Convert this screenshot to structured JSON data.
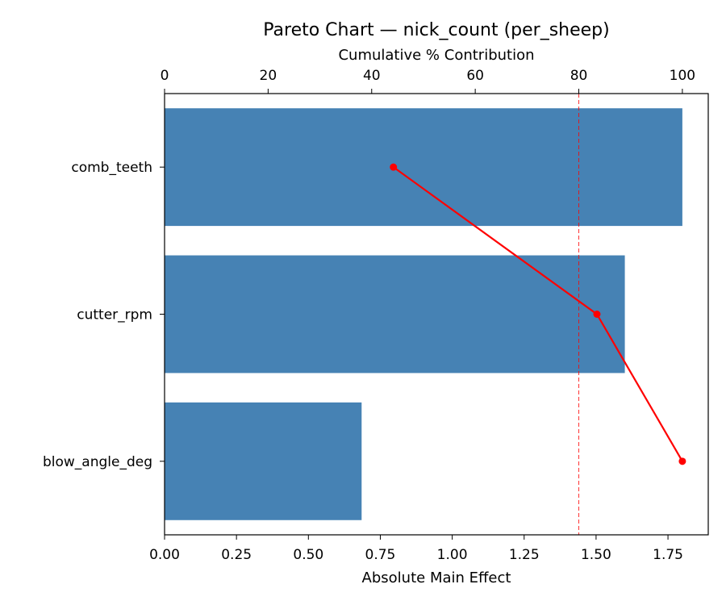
{
  "chart_data": {
    "type": "bar",
    "orientation": "horizontal",
    "title": "Pareto Chart — nick_count (per_sheep)",
    "xlabel": "Absolute Main Effect",
    "top_xlabel": "Cumulative % Contribution",
    "categories": [
      "comb_teeth",
      "cutter_rpm",
      "blow_angle_deg"
    ],
    "values": [
      1.8,
      1.6,
      0.685
    ],
    "cumulative_percent": [
      44.2,
      83.5,
      100.0
    ],
    "xlim": [
      0,
      1.89
    ],
    "xticks": [
      "0.00",
      "0.25",
      "0.50",
      "0.75",
      "1.00",
      "1.25",
      "1.50",
      "1.75"
    ],
    "top_xlim": [
      0,
      105
    ],
    "top_xticks": [
      "0",
      "20",
      "40",
      "60",
      "80",
      "100"
    ],
    "threshold_percent": 80,
    "colors": {
      "bars": "#4682b4",
      "cumulative_line": "#ff0000",
      "threshold_line": "#ff0000"
    }
  }
}
